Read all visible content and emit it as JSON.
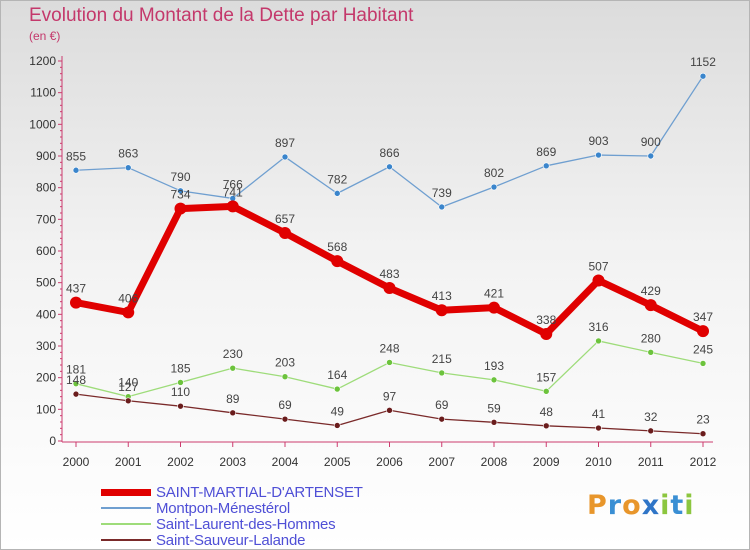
{
  "title": "Evolution du Montant de la Dette par Habitant",
  "unit_label": "(en €)",
  "logo": {
    "text": "Proxiti",
    "letters": [
      {
        "ch": "P",
        "color": "#e8962b"
      },
      {
        "ch": "r",
        "color": "#3a8fd4"
      },
      {
        "ch": "o",
        "color": "#e8962b"
      },
      {
        "ch": "x",
        "color": "#2f75c7"
      },
      {
        "ch": "i",
        "color": "#8cc63f"
      },
      {
        "ch": "t",
        "color": "#3a8fd4"
      },
      {
        "ch": "i",
        "color": "#8cc63f"
      }
    ]
  },
  "chart_data": {
    "type": "line",
    "title": "Evolution du Montant de la Dette par Habitant",
    "ylabel": "(en €)",
    "xlabel": "",
    "x": [
      "2000",
      "2001",
      "2002",
      "2003",
      "2004",
      "2005",
      "2006",
      "2007",
      "2008",
      "2009",
      "2010",
      "2011",
      "2012"
    ],
    "ylim": [
      0,
      1200
    ],
    "yticks": [
      0,
      100,
      200,
      300,
      400,
      500,
      600,
      700,
      800,
      900,
      1000,
      1100,
      1200
    ],
    "grid": false,
    "legend_position": "bottom-left",
    "series": [
      {
        "name": "SAINT-MARTIAL-D'ARTENSET",
        "color": "#e00000",
        "marker": "#e00000",
        "width": 7,
        "values": [
          437,
          406,
          734,
          741,
          657,
          568,
          483,
          413,
          421,
          338,
          507,
          429,
          347
        ]
      },
      {
        "name": "Montpon-Ménestérol",
        "color": "#6f9fd0",
        "marker": "#3a85cc",
        "width": 1.3,
        "values": [
          855,
          863,
          790,
          766,
          897,
          782,
          866,
          739,
          802,
          869,
          903,
          900,
          1152
        ]
      },
      {
        "name": "Saint-Laurent-des-Hommes",
        "color": "#9edc7a",
        "marker": "#6cc33c",
        "width": 1.3,
        "values": [
          181,
          140,
          185,
          230,
          203,
          164,
          248,
          215,
          193,
          157,
          316,
          280,
          245
        ]
      },
      {
        "name": "Saint-Sauveur-Lalande",
        "color": "#7a2a2a",
        "marker": "#6a1c1c",
        "width": 1.3,
        "values": [
          148,
          127,
          110,
          89,
          69,
          49,
          97,
          69,
          59,
          48,
          41,
          32,
          23
        ]
      }
    ]
  }
}
